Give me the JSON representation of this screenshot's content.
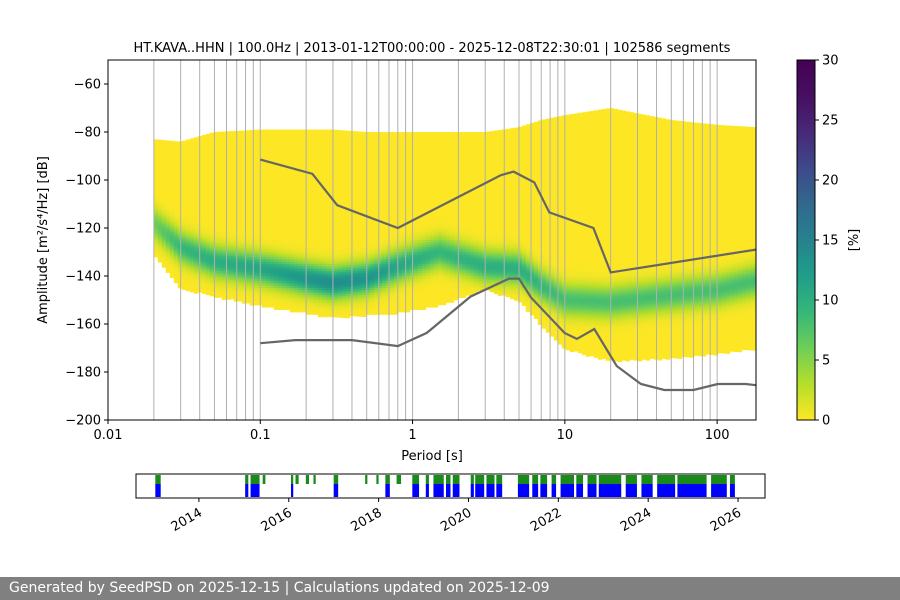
{
  "footer_text": "Generated by SeedPSD on 2025-12-15 | Calculations updated on 2025-12-09",
  "colors": {
    "curve": "#666666",
    "grid": "#b0b0b0",
    "availability_primary": "#1a8a1a",
    "availability_secondary": "#0000ff",
    "footer_bg": "#808080"
  },
  "chart_data": [
    {
      "type": "heatmap",
      "title": "HT.KAVA..HHN | 100.0Hz | 2013-01-12T00:00:00 - 2025-12-08T22:30:01 | 102586 segments",
      "xlabel": "Period [s]",
      "ylabel": "Amplitude [m²/s⁴/Hz] [dB]",
      "x_scale": "log",
      "xlim": [
        0.01,
        180
      ],
      "ylim": [
        -200,
        -50
      ],
      "x_ticks": [
        {
          "value": 0.01,
          "label": "0.01"
        },
        {
          "value": 0.1,
          "label": "0.1"
        },
        {
          "value": 1,
          "label": "1"
        },
        {
          "value": 10,
          "label": "10"
        },
        {
          "value": 100,
          "label": "100"
        }
      ],
      "y_ticks": [
        {
          "value": -60,
          "label": "−60"
        },
        {
          "value": -80,
          "label": "−80"
        },
        {
          "value": -100,
          "label": "−100"
        },
        {
          "value": -120,
          "label": "−120"
        },
        {
          "value": -140,
          "label": "−140"
        },
        {
          "value": -160,
          "label": "−160"
        },
        {
          "value": -180,
          "label": "−180"
        },
        {
          "value": -200,
          "label": "−200"
        }
      ],
      "grid": "vertical lines at log-spaced periods",
      "colorbar": {
        "label": "[%]",
        "range": [
          0,
          30
        ],
        "ticks": [
          {
            "value": 0,
            "label": "0"
          },
          {
            "value": 5,
            "label": "5"
          },
          {
            "value": 10,
            "label": "10"
          },
          {
            "value": 15,
            "label": "15"
          },
          {
            "value": 20,
            "label": "20"
          },
          {
            "value": 25,
            "label": "25"
          },
          {
            "value": 30,
            "label": "30"
          }
        ],
        "colormap": "viridis"
      },
      "density": {
        "period": [
          0.02,
          0.03,
          0.05,
          0.1,
          0.2,
          0.3,
          0.5,
          0.8,
          1.5,
          3,
          5,
          7,
          10,
          20,
          50,
          100,
          180
        ],
        "upper_db": [
          -83,
          -84,
          -80,
          -79,
          -79,
          -79,
          -80,
          -80,
          -80,
          -80,
          -78,
          -75,
          -73,
          -70,
          -75,
          -77,
          -78
        ],
        "lower_db": [
          -130,
          -145,
          -148,
          -152,
          -155,
          -157,
          -156,
          -155,
          -152,
          -145,
          -150,
          -160,
          -170,
          -175,
          -174,
          -172,
          -170
        ],
        "mode_db": [
          -118,
          -128,
          -134,
          -137,
          -141,
          -143,
          -141,
          -136,
          -130,
          -136,
          -137,
          -144,
          -150,
          -151,
          -148,
          -146,
          -142
        ],
        "peak_percent": [
          6,
          9,
          10,
          11,
          13,
          14,
          13,
          11,
          9,
          10,
          10,
          9,
          8,
          8,
          8,
          8,
          8
        ]
      },
      "noise_model_high": {
        "period": [
          0.1,
          0.22,
          0.32,
          0.8,
          3.8,
          4.6,
          6.3,
          7.9,
          15.4,
          20,
          180
        ],
        "db": [
          -91.5,
          -97.4,
          -110.5,
          -120,
          -98,
          -96.5,
          -101,
          -113.5,
          -120,
          -138.5,
          -129
        ]
      },
      "noise_model_low": {
        "period": [
          0.1,
          0.17,
          0.4,
          0.8,
          1.24,
          2.4,
          4.3,
          5,
          6,
          10,
          12,
          15.6,
          21.9,
          31.6,
          45,
          70,
          101,
          154,
          180
        ],
        "db": [
          -168,
          -166.7,
          -166.7,
          -169.2,
          -163.7,
          -148.6,
          -141.1,
          -141.1,
          -149,
          -163.8,
          -166.2,
          -162.1,
          -177.5,
          -185,
          -187.5,
          -187.5,
          -185,
          -185,
          -185.5
        ]
      }
    },
    {
      "type": "bar",
      "title": "",
      "x_ticks": [
        {
          "value": 2014,
          "label": "2014"
        },
        {
          "value": 2016,
          "label": "2016"
        },
        {
          "value": 2018,
          "label": "2018"
        },
        {
          "value": 2020,
          "label": "2020"
        },
        {
          "value": 2022,
          "label": "2022"
        },
        {
          "value": 2024,
          "label": "2024"
        },
        {
          "value": 2026,
          "label": "2026"
        }
      ],
      "xlim": [
        2012.6,
        2026.6
      ],
      "availability_segments": [
        {
          "start": 2013.03,
          "end": 2013.15,
          "level": "both"
        },
        {
          "start": 2015.03,
          "end": 2015.1,
          "level": "both"
        },
        {
          "start": 2015.15,
          "end": 2015.35,
          "level": "both"
        },
        {
          "start": 2015.42,
          "end": 2015.48,
          "level": "primary"
        },
        {
          "start": 2016.05,
          "end": 2016.1,
          "level": "both"
        },
        {
          "start": 2016.15,
          "end": 2016.22,
          "level": "primary"
        },
        {
          "start": 2016.38,
          "end": 2016.45,
          "level": "primary"
        },
        {
          "start": 2016.55,
          "end": 2016.6,
          "level": "primary"
        },
        {
          "start": 2017.0,
          "end": 2017.1,
          "level": "both"
        },
        {
          "start": 2017.7,
          "end": 2017.75,
          "level": "primary"
        },
        {
          "start": 2017.95,
          "end": 2018.0,
          "level": "primary"
        },
        {
          "start": 2018.15,
          "end": 2018.25,
          "level": "both"
        },
        {
          "start": 2018.4,
          "end": 2018.5,
          "level": "primary"
        },
        {
          "start": 2018.75,
          "end": 2018.9,
          "level": "both"
        },
        {
          "start": 2019.05,
          "end": 2019.12,
          "level": "both"
        },
        {
          "start": 2019.22,
          "end": 2019.45,
          "level": "both"
        },
        {
          "start": 2019.5,
          "end": 2019.6,
          "level": "both"
        },
        {
          "start": 2019.65,
          "end": 2019.8,
          "level": "both"
        },
        {
          "start": 2020.05,
          "end": 2020.12,
          "level": "both"
        },
        {
          "start": 2020.15,
          "end": 2020.35,
          "level": "both"
        },
        {
          "start": 2020.4,
          "end": 2020.58,
          "level": "both"
        },
        {
          "start": 2020.62,
          "end": 2020.75,
          "level": "both"
        },
        {
          "start": 2021.1,
          "end": 2021.35,
          "level": "both"
        },
        {
          "start": 2021.42,
          "end": 2021.55,
          "level": "both"
        },
        {
          "start": 2021.6,
          "end": 2021.75,
          "level": "both"
        },
        {
          "start": 2021.85,
          "end": 2021.95,
          "level": "both"
        },
        {
          "start": 2022.05,
          "end": 2022.35,
          "level": "both"
        },
        {
          "start": 2022.4,
          "end": 2022.55,
          "level": "both"
        },
        {
          "start": 2022.65,
          "end": 2022.85,
          "level": "both"
        },
        {
          "start": 2022.9,
          "end": 2023.4,
          "level": "both"
        },
        {
          "start": 2023.5,
          "end": 2023.75,
          "level": "both"
        },
        {
          "start": 2023.85,
          "end": 2024.1,
          "level": "both"
        },
        {
          "start": 2024.2,
          "end": 2024.6,
          "level": "both"
        },
        {
          "start": 2024.65,
          "end": 2025.3,
          "level": "both"
        },
        {
          "start": 2025.4,
          "end": 2025.75,
          "level": "both"
        },
        {
          "start": 2025.82,
          "end": 2025.93,
          "level": "both"
        }
      ]
    }
  ]
}
